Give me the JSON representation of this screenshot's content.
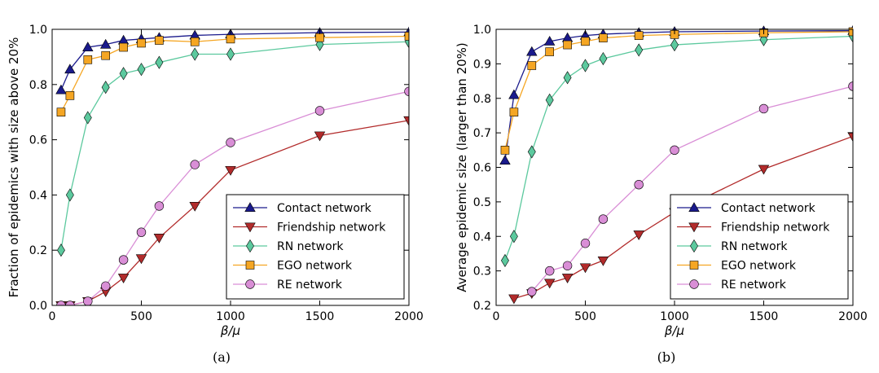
{
  "chart_data": [
    {
      "type": "line",
      "caption": "(a)",
      "xlabel": "β/μ",
      "ylabel": "Fraction of epidemics with size above 20%",
      "xlim": [
        0,
        2000
      ],
      "ylim": [
        0,
        1.0
      ],
      "xticks": [
        0,
        500,
        1000,
        1500,
        2000
      ],
      "yticks": [
        0.0,
        0.2,
        0.4,
        0.6,
        0.8,
        1.0
      ],
      "ytick_labels": [
        "0.0",
        "0.2",
        "0.4",
        "0.6",
        "0.8",
        "1.0"
      ],
      "grid": false,
      "legend_position": "lower-right",
      "series": [
        {
          "name": "Contact network",
          "color": "#1a1a8c",
          "marker": "triangle-up",
          "x": [
            50,
            100,
            200,
            300,
            400,
            500,
            600,
            800,
            1000,
            1500,
            2000
          ],
          "y": [
            0.78,
            0.855,
            0.935,
            0.945,
            0.96,
            0.965,
            0.97,
            0.978,
            0.982,
            0.988,
            0.99
          ]
        },
        {
          "name": "Friendship network",
          "color": "#b22b2b",
          "marker": "triangle-down",
          "x": [
            50,
            100,
            200,
            300,
            400,
            500,
            600,
            800,
            1000,
            1500,
            2000
          ],
          "y": [
            0.0,
            0.0,
            0.015,
            0.05,
            0.1,
            0.17,
            0.245,
            0.36,
            0.49,
            0.615,
            0.67
          ]
        },
        {
          "name": "RN network",
          "color": "#5cc99e",
          "marker": "diamond",
          "x": [
            50,
            100,
            200,
            300,
            400,
            500,
            600,
            800,
            1000,
            1500,
            2000
          ],
          "y": [
            0.2,
            0.4,
            0.68,
            0.79,
            0.84,
            0.855,
            0.88,
            0.91,
            0.91,
            0.945,
            0.955
          ]
        },
        {
          "name": "EGO network",
          "color": "#f5a623",
          "marker": "square",
          "x": [
            50,
            100,
            200,
            300,
            400,
            500,
            600,
            800,
            1000,
            1500,
            2000
          ],
          "y": [
            0.7,
            0.76,
            0.89,
            0.905,
            0.935,
            0.95,
            0.96,
            0.955,
            0.965,
            0.97,
            0.975
          ]
        },
        {
          "name": "RE network",
          "color": "#d98ed6",
          "marker": "circle",
          "x": [
            50,
            100,
            200,
            300,
            400,
            500,
            600,
            800,
            1000,
            1500,
            2000
          ],
          "y": [
            0.0,
            0.0,
            0.015,
            0.07,
            0.165,
            0.265,
            0.36,
            0.51,
            0.59,
            0.705,
            0.775
          ]
        }
      ]
    },
    {
      "type": "line",
      "caption": "(b)",
      "xlabel": "β/μ",
      "ylabel": "Average epidemic size (larger than 20%)",
      "xlim": [
        0,
        2000
      ],
      "ylim": [
        0.2,
        1.0
      ],
      "xticks": [
        0,
        500,
        1000,
        1500,
        2000
      ],
      "yticks": [
        0.2,
        0.3,
        0.4,
        0.5,
        0.6,
        0.7,
        0.8,
        0.9,
        1.0
      ],
      "ytick_labels": [
        "0.2",
        "0.3",
        "0.4",
        "0.5",
        "0.6",
        "0.7",
        "0.8",
        "0.9",
        "1.0"
      ],
      "grid": false,
      "legend_position": "lower-right",
      "series": [
        {
          "name": "Contact network",
          "color": "#1a1a8c",
          "marker": "triangle-up",
          "x": [
            50,
            100,
            200,
            300,
            400,
            500,
            600,
            800,
            1000,
            1500,
            2000
          ],
          "y": [
            0.62,
            0.81,
            0.935,
            0.965,
            0.975,
            0.982,
            0.986,
            0.99,
            0.993,
            0.995,
            0.996
          ]
        },
        {
          "name": "Friendship network",
          "color": "#b22b2b",
          "marker": "triangle-down",
          "x": [
            100,
            200,
            300,
            400,
            500,
            600,
            800,
            1000,
            1500,
            2000
          ],
          "y": [
            0.22,
            0.235,
            0.265,
            0.28,
            0.31,
            0.33,
            0.405,
            0.47,
            0.595,
            0.69
          ]
        },
        {
          "name": "RN network",
          "color": "#5cc99e",
          "marker": "diamond",
          "x": [
            50,
            100,
            200,
            300,
            400,
            500,
            600,
            800,
            1000,
            1500,
            2000
          ],
          "y": [
            0.33,
            0.4,
            0.645,
            0.795,
            0.86,
            0.895,
            0.915,
            0.94,
            0.955,
            0.97,
            0.98
          ]
        },
        {
          "name": "EGO network",
          "color": "#f5a623",
          "marker": "square",
          "x": [
            50,
            100,
            200,
            300,
            400,
            500,
            600,
            800,
            1000,
            1500,
            2000
          ],
          "y": [
            0.65,
            0.76,
            0.895,
            0.935,
            0.955,
            0.965,
            0.975,
            0.982,
            0.985,
            0.99,
            0.993
          ]
        },
        {
          "name": "RE network",
          "color": "#d98ed6",
          "marker": "circle",
          "x": [
            200,
            300,
            400,
            500,
            600,
            800,
            1000,
            1500,
            2000
          ],
          "y": [
            0.24,
            0.3,
            0.315,
            0.38,
            0.45,
            0.55,
            0.65,
            0.77,
            0.835
          ]
        }
      ]
    }
  ]
}
